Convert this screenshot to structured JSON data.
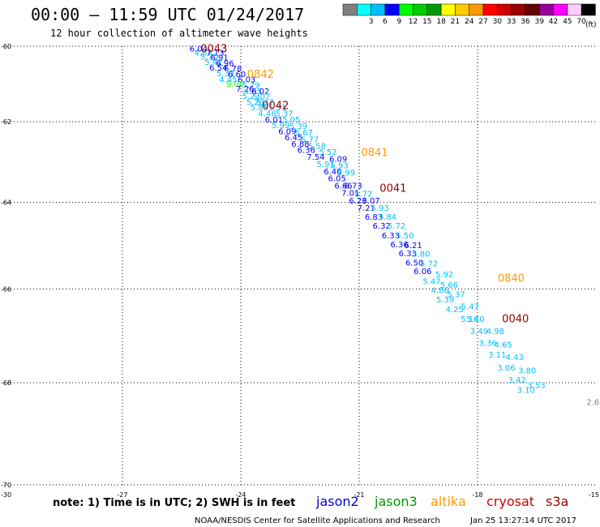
{
  "header": {
    "title": "00:00 – 11:59 UTC 01/24/2017",
    "subtitle": "12 hour collection of altimeter wave heights"
  },
  "legend": {
    "bins": [
      {
        "label": "",
        "color": "#808080"
      },
      {
        "label": "3",
        "color": "#00ffff"
      },
      {
        "label": "6",
        "color": "#00bfff"
      },
      {
        "label": "9",
        "color": "#0000ff"
      },
      {
        "label": "12",
        "color": "#00ff00"
      },
      {
        "label": "15",
        "color": "#00cc00"
      },
      {
        "label": "18",
        "color": "#009900"
      },
      {
        "label": "21",
        "color": "#ffff00"
      },
      {
        "label": "24",
        "color": "#ffcc00"
      },
      {
        "label": "27",
        "color": "#ff9900"
      },
      {
        "label": "30",
        "color": "#ff0000"
      },
      {
        "label": "33",
        "color": "#cc0000"
      },
      {
        "label": "36",
        "color": "#990000"
      },
      {
        "label": "39",
        "color": "#660000"
      },
      {
        "label": "42",
        "color": "#990099"
      },
      {
        "label": "45",
        "color": "#ff00ff"
      },
      {
        "label": "70",
        "color": "#ffccff"
      },
      {
        "label": "",
        "color": "#000000"
      }
    ],
    "unit": "(ft)"
  },
  "footer": {
    "note": "note: 1) Time is in UTC; 2) SWH is in feet",
    "satellites": [
      {
        "name": "jason2",
        "color": "#0000cc"
      },
      {
        "name": "jason3",
        "color": "#009900"
      },
      {
        "name": "altika",
        "color": "#ff9900"
      },
      {
        "name": "cryosat",
        "color": "#cc0000"
      },
      {
        "name": "s3a",
        "color": "#990000"
      }
    ],
    "credit": "NOAA/NESDIS Center for Satellite Applications and Research",
    "timestamp": "Jan 25 13:27:14 UTC 2017"
  },
  "chart_data": {
    "type": "scatter",
    "xlim": [
      -30,
      -15
    ],
    "ylim": [
      -70,
      -60
    ],
    "x_ticks": [
      -27,
      -24,
      -21,
      -18
    ],
    "x_edge_labels": [
      "-30",
      "-15"
    ],
    "y_ticks": [
      -60,
      -62,
      -64,
      -66,
      -68,
      -70
    ],
    "grid": true,
    "points": [
      {
        "x": -25.3,
        "y": -60.06,
        "v": "6.04"
      },
      {
        "x": -25.18,
        "y": -60.17,
        "v": "4.87"
      },
      {
        "x": -24.88,
        "y": -60.17,
        "v": "7.13"
      },
      {
        "x": -25.03,
        "y": -60.28,
        "v": "5.70"
      },
      {
        "x": -24.77,
        "y": -60.3,
        "v": "6.91"
      },
      {
        "x": -24.92,
        "y": -60.42,
        "v": "5.42"
      },
      {
        "x": -24.63,
        "y": -60.45,
        "v": "6.96"
      },
      {
        "x": -24.8,
        "y": -60.57,
        "v": "6.54"
      },
      {
        "x": -24.43,
        "y": -60.59,
        "v": "6.78"
      },
      {
        "x": -24.62,
        "y": -60.72,
        "v": "5.33"
      },
      {
        "x": -24.33,
        "y": -60.74,
        "v": "6.60"
      },
      {
        "x": -24.55,
        "y": -60.88,
        "v": "4.45"
      },
      {
        "x": -24.08,
        "y": -60.88,
        "v": "6.03"
      },
      {
        "x": -24.37,
        "y": -61.0,
        "v": "9.00"
      },
      {
        "x": -23.97,
        "y": -61.04,
        "v": "5.79"
      },
      {
        "x": -24.12,
        "y": -61.13,
        "v": "7.26"
      },
      {
        "x": -23.92,
        "y": -61.2,
        "v": "4.95"
      },
      {
        "x": -23.73,
        "y": -61.2,
        "v": "6.02"
      },
      {
        "x": -23.97,
        "y": -61.32,
        "v": "5.23"
      },
      {
        "x": -23.71,
        "y": -61.33,
        "v": "5.07"
      },
      {
        "x": -23.86,
        "y": -61.48,
        "v": "5.29"
      },
      {
        "x": -23.62,
        "y": -61.48,
        "v": "5.27"
      },
      {
        "x": -23.76,
        "y": -61.62,
        "v": "5.85"
      },
      {
        "x": -23.3,
        "y": -61.62,
        "v": "5.51"
      },
      {
        "x": -23.56,
        "y": -61.78,
        "v": "4.46"
      },
      {
        "x": -23.13,
        "y": -61.78,
        "v": "5.37"
      },
      {
        "x": -23.39,
        "y": -61.93,
        "v": "6.01"
      },
      {
        "x": -22.95,
        "y": -61.93,
        "v": "5.05"
      },
      {
        "x": -23.22,
        "y": -62.08,
        "v": "5.99"
      },
      {
        "x": -22.77,
        "y": -62.1,
        "v": "5.39"
      },
      {
        "x": -23.05,
        "y": -62.24,
        "v": "6.09"
      },
      {
        "x": -22.63,
        "y": -62.27,
        "v": "5.67"
      },
      {
        "x": -22.89,
        "y": -62.39,
        "v": "6.45"
      },
      {
        "x": -22.48,
        "y": -62.44,
        "v": "5.77"
      },
      {
        "x": -22.72,
        "y": -62.55,
        "v": "6.88"
      },
      {
        "x": -22.3,
        "y": -62.61,
        "v": "5.58"
      },
      {
        "x": -22.57,
        "y": -62.71,
        "v": "6.36"
      },
      {
        "x": -22.02,
        "y": -62.76,
        "v": "5.52"
      },
      {
        "x": -22.33,
        "y": -62.88,
        "v": "7.54"
      },
      {
        "x": -21.76,
        "y": -62.93,
        "v": "6.09"
      },
      {
        "x": -22.08,
        "y": -63.06,
        "v": "5.91"
      },
      {
        "x": -21.73,
        "y": -63.09,
        "v": "5.93"
      },
      {
        "x": -21.9,
        "y": -63.24,
        "v": "6.40"
      },
      {
        "x": -21.56,
        "y": -63.27,
        "v": "5.99"
      },
      {
        "x": -21.79,
        "y": -63.41,
        "v": "6.05"
      },
      {
        "x": -21.63,
        "y": -63.59,
        "v": "6.66"
      },
      {
        "x": -21.38,
        "y": -63.59,
        "v": "6.73"
      },
      {
        "x": -21.45,
        "y": -63.76,
        "v": "7.01"
      },
      {
        "x": -21.12,
        "y": -63.78,
        "v": "5.72"
      },
      {
        "x": -21.26,
        "y": -63.95,
        "v": "6.23"
      },
      {
        "x": -20.93,
        "y": -63.95,
        "v": "6.07"
      },
      {
        "x": -21.05,
        "y": -64.12,
        "v": "7.21"
      },
      {
        "x": -20.7,
        "y": -64.12,
        "v": "5.93"
      },
      {
        "x": -20.86,
        "y": -64.34,
        "v": "6.83"
      },
      {
        "x": -20.51,
        "y": -64.34,
        "v": "5.84"
      },
      {
        "x": -20.66,
        "y": -64.55,
        "v": "6.32"
      },
      {
        "x": -20.28,
        "y": -64.55,
        "v": "5.72"
      },
      {
        "x": -20.43,
        "y": -64.77,
        "v": "6.33"
      },
      {
        "x": -20.07,
        "y": -64.77,
        "v": "5.50"
      },
      {
        "x": -20.21,
        "y": -64.98,
        "v": "6.36"
      },
      {
        "x": -19.86,
        "y": -65.0,
        "v": "6.21"
      },
      {
        "x": -20.0,
        "y": -65.19,
        "v": "6.33"
      },
      {
        "x": -19.66,
        "y": -65.2,
        "v": "5.80"
      },
      {
        "x": -19.83,
        "y": -65.4,
        "v": "6.50"
      },
      {
        "x": -19.46,
        "y": -65.42,
        "v": "5.72"
      },
      {
        "x": -19.62,
        "y": -65.59,
        "v": "6.06"
      },
      {
        "x": -19.07,
        "y": -65.67,
        "v": "5.92"
      },
      {
        "x": -19.39,
        "y": -65.82,
        "v": "5.47"
      },
      {
        "x": -18.95,
        "y": -65.9,
        "v": "5.66"
      },
      {
        "x": -19.18,
        "y": -66.02,
        "v": "4.86"
      },
      {
        "x": -18.77,
        "y": -66.11,
        "v": "5.37"
      },
      {
        "x": -19.05,
        "y": -66.23,
        "v": "5.39"
      },
      {
        "x": -18.42,
        "y": -66.38,
        "v": "5.47"
      },
      {
        "x": -18.81,
        "y": -66.44,
        "v": "4.25"
      },
      {
        "x": -18.43,
        "y": -66.65,
        "v": "5.16"
      },
      {
        "x": -18.28,
        "y": -66.65,
        "v": "5.40"
      },
      {
        "x": -18.19,
        "y": -66.91,
        "v": "3.49"
      },
      {
        "x": -17.78,
        "y": -66.91,
        "v": "4.98"
      },
      {
        "x": -17.97,
        "y": -67.16,
        "v": "3.36"
      },
      {
        "x": -17.58,
        "y": -67.2,
        "v": "4.65"
      },
      {
        "x": -17.73,
        "y": -67.41,
        "v": "3.11"
      },
      {
        "x": -17.29,
        "y": -67.46,
        "v": "4.43"
      },
      {
        "x": -17.5,
        "y": -67.68,
        "v": "3.06"
      },
      {
        "x": -16.97,
        "y": -67.74,
        "v": "3.80"
      },
      {
        "x": -17.23,
        "y": -67.93,
        "v": "3.42"
      },
      {
        "x": -16.74,
        "y": -68.04,
        "v": "3.53"
      },
      {
        "x": -17.0,
        "y": -68.14,
        "v": "3.10"
      }
    ],
    "edge_points": [
      {
        "x": -15.24,
        "y": -68.39,
        "v": "2.6"
      }
    ],
    "pass_labels": [
      {
        "x": -25.02,
        "y": -60.06,
        "text": "0043",
        "satellite": "s3a"
      },
      {
        "x": -23.84,
        "y": -60.75,
        "text": "0842",
        "satellite": "altika"
      },
      {
        "x": -23.46,
        "y": -61.57,
        "text": "0042",
        "satellite": "s3a"
      },
      {
        "x": -20.95,
        "y": -62.77,
        "text": "0841",
        "satellite": "altika"
      },
      {
        "x": -20.48,
        "y": -63.65,
        "text": "0041",
        "satellite": "s3a"
      },
      {
        "x": -17.49,
        "y": -65.75,
        "text": "0840",
        "satellite": "altika"
      },
      {
        "x": -17.38,
        "y": -66.64,
        "text": "0040",
        "satellite": "s3a"
      }
    ]
  }
}
